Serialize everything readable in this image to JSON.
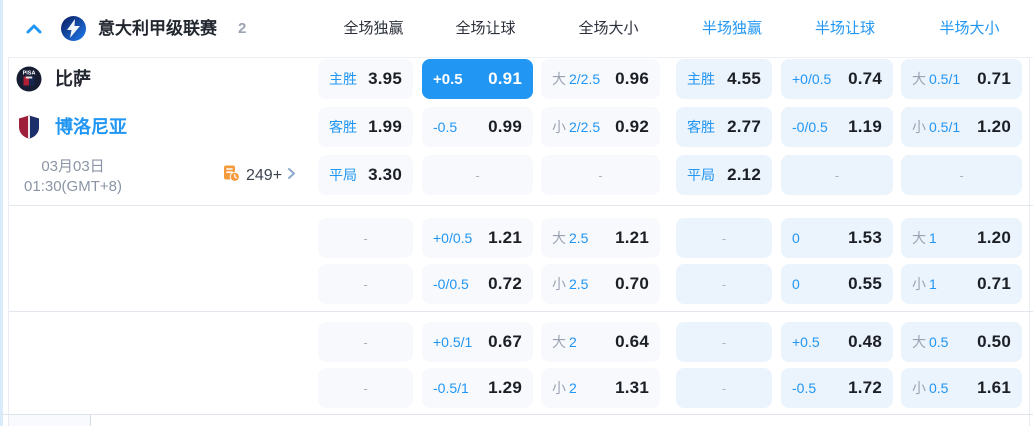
{
  "header": {
    "league": "意大利甲级联赛",
    "count": "2",
    "columns": [
      "全场独赢",
      "全场让球",
      "全场大小",
      "半场独赢",
      "半场让球",
      "半场大小"
    ]
  },
  "match": {
    "home_team": "比萨",
    "away_team": "博洛尼亚",
    "date": "03月03日",
    "time": "01:30(GMT+8)",
    "markets_count": "249+"
  },
  "colors": {
    "accent_blue": "#2196f3",
    "half_cell_bg": "#ebf3fc",
    "full_cell_bg": "#f7f9fd",
    "gray_text": "#9aa3b2",
    "dark_text": "#1c2026",
    "markets_icon_orange": "#f59b3d"
  },
  "odds": {
    "dash": "-",
    "sections": [
      {
        "rows": [
          [
            {
              "l": "主胜",
              "v": "3.95"
            },
            {
              "l": "+0.5",
              "v": "0.91",
              "sel": true
            },
            {
              "p": "大",
              "l": "2/2.5",
              "v": "0.96"
            },
            {
              "l": "主胜",
              "v": "4.55"
            },
            {
              "l": "+0/0.5",
              "v": "0.74"
            },
            {
              "p": "大",
              "l": "0.5/1",
              "v": "0.71"
            }
          ],
          [
            {
              "l": "客胜",
              "v": "1.99"
            },
            {
              "l": "-0.5",
              "v": "0.99"
            },
            {
              "p": "小",
              "l": "2/2.5",
              "v": "0.92"
            },
            {
              "l": "客胜",
              "v": "2.77"
            },
            {
              "l": "-0/0.5",
              "v": "1.19"
            },
            {
              "p": "小",
              "l": "0.5/1",
              "v": "1.20"
            }
          ],
          [
            {
              "l": "平局",
              "v": "3.30"
            },
            {
              "e": true
            },
            {
              "e": true
            },
            {
              "l": "平局",
              "v": "2.12"
            },
            {
              "e": true
            },
            {
              "e": true
            }
          ]
        ]
      },
      {
        "rows": [
          [
            {
              "e": true
            },
            {
              "l": "+0/0.5",
              "v": "1.21"
            },
            {
              "p": "大",
              "l": "2.5",
              "v": "1.21"
            },
            {
              "e": true
            },
            {
              "l": "0",
              "v": "1.53"
            },
            {
              "p": "大",
              "l": "1",
              "v": "1.20"
            }
          ],
          [
            {
              "e": true
            },
            {
              "l": "-0/0.5",
              "v": "0.72"
            },
            {
              "p": "小",
              "l": "2.5",
              "v": "0.70"
            },
            {
              "e": true
            },
            {
              "l": "0",
              "v": "0.55"
            },
            {
              "p": "小",
              "l": "1",
              "v": "0.71"
            }
          ]
        ]
      },
      {
        "rows": [
          [
            {
              "e": true
            },
            {
              "l": "+0.5/1",
              "v": "0.67"
            },
            {
              "p": "大",
              "l": "2",
              "v": "0.64"
            },
            {
              "e": true
            },
            {
              "l": "+0.5",
              "v": "0.48"
            },
            {
              "p": "大",
              "l": "0.5",
              "v": "0.50"
            }
          ],
          [
            {
              "e": true
            },
            {
              "l": "-0.5/1",
              "v": "1.29"
            },
            {
              "p": "小",
              "l": "2",
              "v": "1.31"
            },
            {
              "e": true
            },
            {
              "l": "-0.5",
              "v": "1.72"
            },
            {
              "p": "小",
              "l": "0.5",
              "v": "1.61"
            }
          ]
        ]
      }
    ]
  }
}
